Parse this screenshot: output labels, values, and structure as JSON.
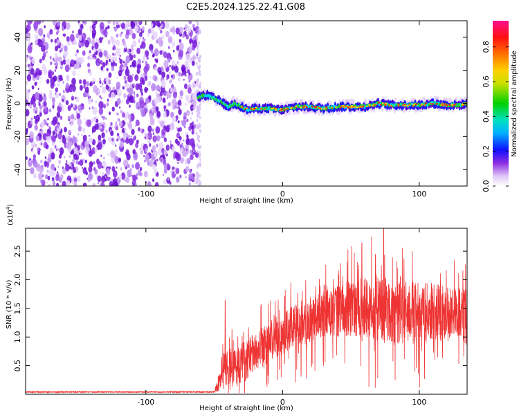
{
  "title": "C2E5.2024.125.22.41.G08",
  "chart_data": [
    {
      "type": "heatmap",
      "xlabel": "Height of straight line (km)",
      "ylabel": "Frequency (Hz)",
      "xlim": [
        -188,
        135
      ],
      "ylim": [
        -50,
        50
      ],
      "x_ticks": [
        -100,
        0,
        100
      ],
      "x_tick_labels": [
        "-100",
        "0",
        "100"
      ],
      "y_ticks": [
        -40,
        -20,
        0,
        20,
        40
      ],
      "y_tick_labels": [
        "-40",
        "-20",
        "0",
        "20",
        "40"
      ],
      "noise_region": {
        "x_start": -188,
        "x_end": -62
      },
      "signal_track": {
        "x": [
          -62,
          -55,
          -50,
          -45,
          -40,
          -35,
          -30,
          -25,
          -20,
          -10,
          0,
          10,
          20,
          30,
          40,
          50,
          60,
          70,
          80,
          90,
          100,
          110,
          120,
          130,
          135
        ],
        "y": [
          4,
          5,
          3,
          1,
          -2,
          0,
          -2,
          -4,
          -3,
          -3,
          -4,
          -2,
          -2,
          -3,
          -2,
          -2,
          -2,
          0,
          -1,
          -1,
          -1,
          0,
          -1,
          -1,
          0
        ]
      },
      "colorbar": {
        "label": "Normalized spectral amplitude",
        "range": [
          0.0,
          0.95
        ],
        "ticks": [
          0.0,
          0.2,
          0.4,
          0.6,
          0.8
        ],
        "tick_labels": [
          "0.0",
          "0.2",
          "0.4",
          "0.6",
          "0.8"
        ]
      }
    },
    {
      "type": "line",
      "xlabel": "Height of straight line (km)",
      "ylabel": "SNR (10 * v/v)",
      "y_scale_note": "(x10",
      "y_scale_exponent": "4",
      "y_scale_close": ")",
      "xlim": [
        -188,
        135
      ],
      "ylim": [
        0,
        2.9
      ],
      "x_ticks": [
        -100,
        0,
        100
      ],
      "x_tick_labels": [
        "-100",
        "0",
        "100"
      ],
      "y_ticks": [
        0.5,
        1.0,
        1.5,
        2.0,
        2.5
      ],
      "y_tick_labels": [
        "0.5",
        "1.0",
        "1.5",
        "2.0",
        "2.5"
      ],
      "color": "#ee3333",
      "envelope": {
        "x": [
          -188,
          -50,
          -47,
          -45,
          -40,
          -35,
          -30,
          -25,
          -20,
          -10,
          0,
          10,
          20,
          30,
          40,
          50,
          60,
          70,
          80,
          90,
          100,
          110,
          120,
          130,
          135
        ],
        "mean": [
          0.04,
          0.04,
          0.2,
          0.35,
          0.5,
          0.45,
          0.55,
          0.6,
          0.75,
          0.9,
          1.05,
          1.2,
          1.3,
          1.4,
          1.45,
          1.5,
          1.5,
          1.5,
          1.45,
          1.45,
          1.4,
          1.45,
          1.4,
          1.4,
          1.35
        ],
        "spread": [
          0.01,
          0.01,
          0.15,
          0.3,
          0.35,
          0.35,
          0.35,
          0.35,
          0.35,
          0.35,
          0.35,
          0.4,
          0.4,
          0.4,
          0.45,
          0.5,
          0.55,
          0.6,
          0.6,
          0.55,
          0.55,
          0.5,
          0.5,
          0.5,
          0.5
        ]
      },
      "peaks": [
        {
          "x": -42,
          "y": 1.65
        },
        {
          "x": 58,
          "y": 2.65
        },
        {
          "x": 74,
          "y": 2.9
        },
        {
          "x": 68,
          "y": 2.45
        }
      ]
    }
  ]
}
